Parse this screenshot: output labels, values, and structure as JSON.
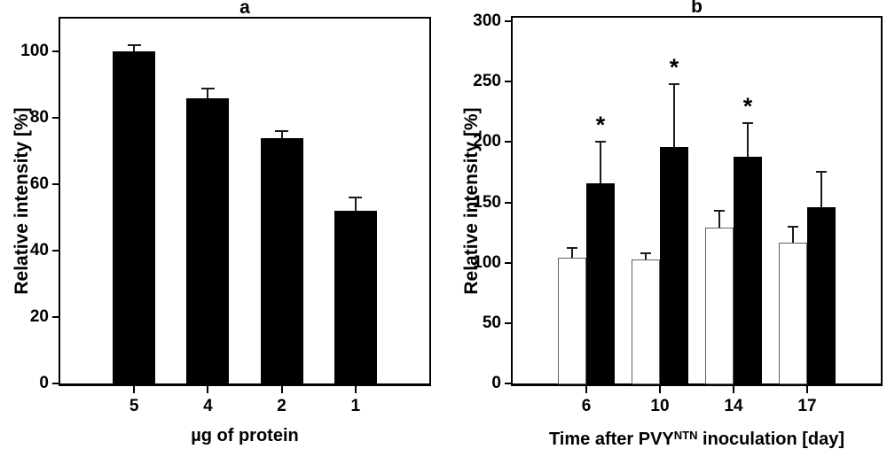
{
  "figure": {
    "background": "#ffffff",
    "ink_color": "#000000",
    "white_bar_fill": "#ffffff",
    "black_bar_fill": "#000000"
  },
  "chart_data": [
    {
      "id": "a",
      "type": "bar",
      "title": "a",
      "ylabel": "Relative intensity [%]",
      "xlabel_parts": [
        {
          "text": "µg of protein",
          "sup": false
        }
      ],
      "categories": [
        "5",
        "4",
        "2",
        "1"
      ],
      "series": [
        {
          "name": "black-bars",
          "fill": "#000000",
          "values": [
            100,
            86,
            74,
            52
          ],
          "errors": [
            2,
            3,
            2,
            4
          ],
          "sig": [
            "",
            "",
            "",
            ""
          ]
        }
      ],
      "ylim": [
        0,
        110
      ],
      "yticks": [
        0,
        20,
        40,
        60,
        80,
        100
      ],
      "grid": false,
      "legend": "none",
      "error_bars": "upper"
    },
    {
      "id": "b",
      "type": "bar",
      "title": "b",
      "ylabel": "Relative intensity [%]",
      "xlabel_parts": [
        {
          "text": "Time after PVY",
          "sup": false
        },
        {
          "text": "NTN",
          "sup": true
        },
        {
          "text": " inoculation [day]",
          "sup": false
        }
      ],
      "categories": [
        "6",
        "10",
        "14",
        "17"
      ],
      "series": [
        {
          "name": "white-bars",
          "fill": "#ffffff",
          "values": [
            104,
            103,
            129,
            117
          ],
          "errors": [
            8,
            5,
            14,
            13
          ],
          "sig": [
            "",
            "",
            "",
            ""
          ]
        },
        {
          "name": "black-bars",
          "fill": "#000000",
          "values": [
            166,
            196,
            188,
            146
          ],
          "errors": [
            34,
            52,
            28,
            29
          ],
          "sig": [
            "*",
            "*",
            "*",
            ""
          ]
        }
      ],
      "ylim": [
        0,
        303
      ],
      "yticks": [
        0,
        50,
        100,
        150,
        200,
        250,
        300
      ],
      "grid": false,
      "legend": "none",
      "error_bars": "upper"
    }
  ]
}
